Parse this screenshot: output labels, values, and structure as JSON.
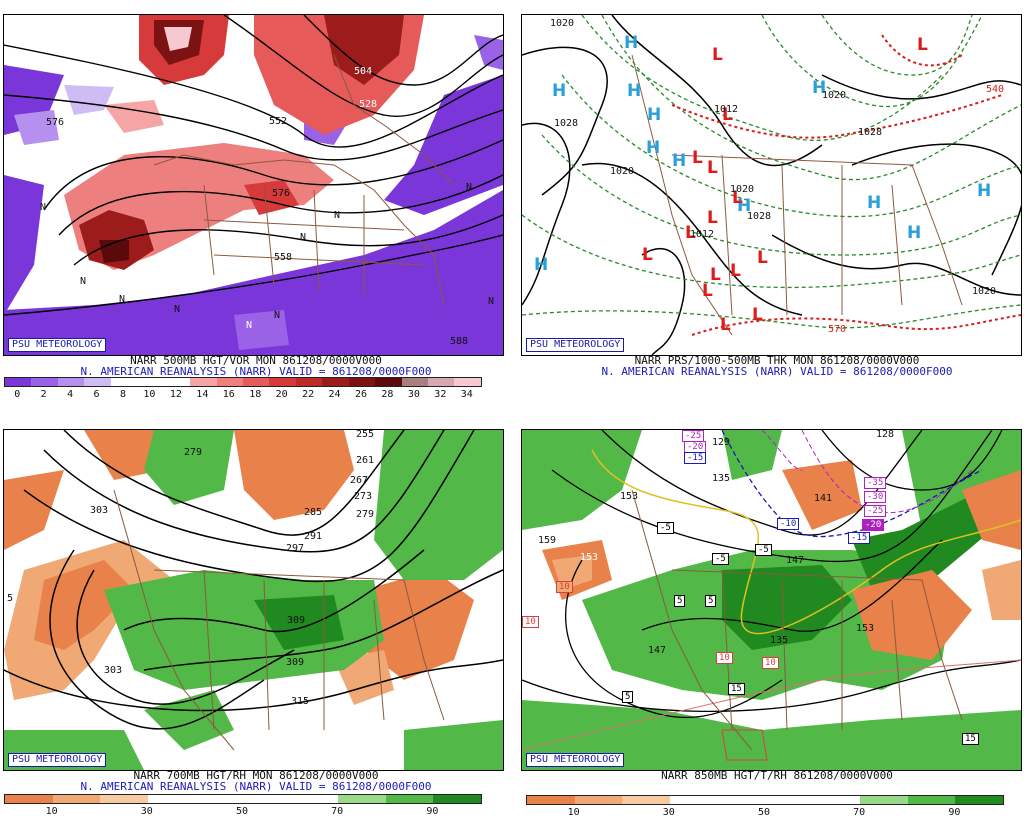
{
  "psu_label": "PSU METEOROLOGY",
  "panels": {
    "tl": {
      "line1": "NARR 500MB HGT/VOR MON 861208/0000V000",
      "line2": "N. AMERICAN REANALYSIS (NARR) VALID = 861208/0000F000",
      "colorbar": {
        "ticks": [
          "0",
          "2",
          "4",
          "6",
          "8",
          "10",
          "12",
          "14",
          "16",
          "18",
          "20",
          "22",
          "24",
          "26",
          "28",
          "30",
          "32",
          "34"
        ],
        "colors": [
          "#7a36d8",
          "#9a62e6",
          "#b690ef",
          "#d0bcf5",
          "#ffffff",
          "#ffffff",
          "#ffffff",
          "#f5a5a5",
          "#ee7f7f",
          "#e65a5a",
          "#d63a3a",
          "#bd2a2a",
          "#9c1c1c",
          "#7c1212",
          "#5a0a0a",
          "#a88080",
          "#d8a8b0",
          "#f6c8d2"
        ]
      },
      "labels": [
        "576",
        "552",
        "528",
        "504",
        "588",
        "558",
        "576"
      ],
      "n_marks": [
        "N",
        "N",
        "N",
        "N",
        "N",
        "N",
        "N",
        "N",
        "N",
        "N"
      ]
    },
    "tr": {
      "line1": "NARR PRS/1000-500MB THK MON 861208/0000V000",
      "line2": "N. AMERICAN REANALYSIS (NARR) VALID = 861208/0000F000",
      "highs": [
        "H",
        "H",
        "H",
        "H",
        "H",
        "H",
        "H",
        "H",
        "H",
        "H",
        "H",
        "H"
      ],
      "lows": [
        "L",
        "L",
        "L",
        "L",
        "L",
        "L",
        "L",
        "L",
        "L",
        "L",
        "L",
        "L",
        "L",
        "L",
        "L"
      ],
      "labels": [
        "1020",
        "1028",
        "1020",
        "1012",
        "1028",
        "1020",
        "1028",
        "540",
        "1020",
        "570",
        "1012",
        "1020"
      ]
    },
    "bl": {
      "line1": "NARR 700MB HGT/RH MON 861208/0000V000",
      "line2": "N. AMERICAN REANALYSIS (NARR) VALID = 861208/0000F000",
      "colorbar": {
        "ticks": [
          "10",
          "30",
          "50",
          "70",
          "90"
        ],
        "colors": [
          "#e8824a",
          "#f0a874",
          "#f7caa4",
          "#ffffff",
          "#ffffff",
          "#ffffff",
          "#ffffff",
          "#9ad88a",
          "#52b848",
          "#208a20"
        ]
      },
      "labels": [
        "255",
        "261",
        "267",
        "273",
        "279",
        "279",
        "285",
        "291",
        "297",
        "303",
        "309",
        "315",
        "303",
        "309",
        "5"
      ]
    },
    "br": {
      "line1": "NARR 850MB HGT/T/RH 861208/0000V000",
      "colorbar": {
        "ticks": [
          "10",
          "30",
          "50",
          "70",
          "90"
        ],
        "colors": [
          "#e8824a",
          "#f0a874",
          "#f7caa4",
          "#ffffff",
          "#ffffff",
          "#ffffff",
          "#ffffff",
          "#9ad88a",
          "#52b848",
          "#208a20"
        ]
      },
      "labels": [
        "129",
        "135",
        "141",
        "147",
        "153",
        "159",
        "153",
        "147",
        "128",
        "135",
        "153"
      ],
      "boxes": [
        "-25",
        "-20",
        "-15",
        "-5",
        "-5",
        "-10",
        "-5",
        "5",
        "5",
        "5",
        "15",
        "10",
        "10",
        "10",
        "15",
        "-35",
        "-30",
        "-25",
        "-20",
        "-15",
        "10"
      ]
    }
  }
}
